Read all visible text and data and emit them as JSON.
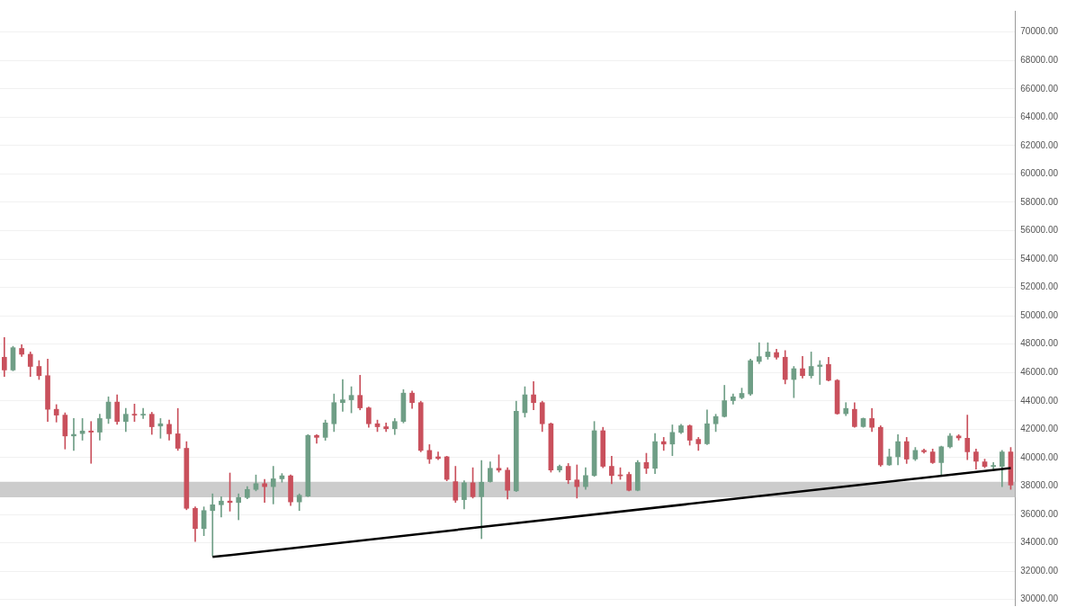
{
  "chart_data": {
    "type": "candlestick",
    "categories": [
      null,
      null,
      null,
      null,
      null,
      null,
      null,
      null,
      null,
      null,
      null,
      null,
      null,
      null,
      null,
      null,
      null,
      null,
      null,
      null,
      null,
      null,
      null,
      null,
      null,
      null,
      null,
      null,
      null,
      null,
      null,
      null,
      null,
      null,
      null,
      null,
      null,
      null,
      null,
      null,
      null,
      null,
      null,
      null,
      null,
      null,
      null,
      null,
      null,
      null,
      null,
      null,
      null,
      null,
      null,
      null,
      null,
      null,
      null,
      null,
      null,
      null,
      null,
      null,
      null,
      null,
      null,
      null,
      null,
      null,
      null,
      null,
      null,
      null,
      null,
      null,
      null,
      null,
      null,
      null,
      null,
      null,
      null,
      null,
      null,
      null,
      null,
      null,
      null,
      null,
      null,
      null,
      null,
      null,
      null,
      null,
      null,
      null,
      null,
      null,
      null,
      null,
      null,
      null,
      null,
      null,
      null,
      null,
      null,
      null,
      null,
      null,
      null,
      null,
      null,
      null,
      null
    ],
    "ohlc": [
      [
        47080,
        48470,
        45720,
        46180
      ],
      [
        46180,
        47850,
        46120,
        47750
      ],
      [
        47700,
        47960,
        47140,
        47290
      ],
      [
        47290,
        47450,
        45720,
        46430
      ],
      [
        46430,
        46840,
        45510,
        45780
      ],
      [
        45780,
        46940,
        42550,
        43410
      ],
      [
        43410,
        43740,
        42510,
        43000
      ],
      [
        43000,
        43160,
        40610,
        41530
      ],
      [
        41530,
        42760,
        40510,
        41640
      ],
      [
        41700,
        42760,
        41230,
        41880
      ],
      [
        41880,
        42550,
        39600,
        41800
      ],
      [
        41800,
        43060,
        41230,
        42760
      ],
      [
        42760,
        44290,
        42410,
        43920
      ],
      [
        43920,
        44430,
        42350,
        42550
      ],
      [
        42550,
        43470,
        41840,
        43060
      ],
      [
        43060,
        43780,
        42550,
        43000
      ],
      [
        43000,
        43470,
        42760,
        43030
      ],
      [
        43060,
        43200,
        41640,
        42180
      ],
      [
        42230,
        42760,
        41370,
        42390
      ],
      [
        42350,
        42660,
        41230,
        41680
      ],
      [
        41680,
        43470,
        40510,
        40660
      ],
      [
        40660,
        41130,
        36330,
        36430
      ],
      [
        36430,
        36530,
        34090,
        35000
      ],
      [
        35000,
        36530,
        34500,
        36270
      ],
      [
        36270,
        37450,
        33070,
        36680
      ],
      [
        36680,
        37250,
        35820,
        36940
      ],
      [
        36940,
        38920,
        36230,
        36840
      ],
      [
        36840,
        37450,
        35620,
        37190
      ],
      [
        37190,
        37960,
        37100,
        37760
      ],
      [
        37760,
        38780,
        37660,
        38170
      ],
      [
        38170,
        38470,
        36840,
        37960
      ],
      [
        37960,
        39390,
        36740,
        38510
      ],
      [
        38510,
        38880,
        38270,
        38720
      ],
      [
        38720,
        38780,
        36630,
        36880
      ],
      [
        36880,
        37450,
        36270,
        37350
      ],
      [
        37290,
        41630,
        37250,
        41570
      ],
      [
        41570,
        41630,
        41020,
        41430
      ],
      [
        41430,
        42650,
        41220,
        42450
      ],
      [
        42390,
        44490,
        41840,
        43880
      ],
      [
        43880,
        45510,
        43270,
        44080
      ],
      [
        44080,
        45000,
        43160,
        44390
      ],
      [
        44390,
        45810,
        43370,
        43510
      ],
      [
        43510,
        43570,
        42140,
        42390
      ],
      [
        42390,
        42650,
        41840,
        42180
      ],
      [
        42180,
        42450,
        41840,
        42040
      ],
      [
        42040,
        42760,
        41630,
        42550
      ],
      [
        42550,
        44800,
        42450,
        44550
      ],
      [
        44550,
        44690,
        43470,
        43880
      ],
      [
        43880,
        43980,
        40410,
        40510
      ],
      [
        40510,
        40920,
        39590,
        39900
      ],
      [
        40060,
        40410,
        39860,
        39940
      ],
      [
        40060,
        40100,
        38370,
        38470
      ],
      [
        38310,
        39390,
        36840,
        37000
      ],
      [
        37040,
        38370,
        36390,
        38230
      ],
      [
        38230,
        39290,
        37150,
        37250
      ],
      [
        37250,
        39800,
        34290,
        38270
      ],
      [
        38310,
        39700,
        38270,
        39250
      ],
      [
        39250,
        40200,
        38980,
        39120
      ],
      [
        39120,
        39290,
        37080,
        37700
      ],
      [
        37660,
        43980,
        37610,
        43270
      ],
      [
        43170,
        45000,
        42860,
        44430
      ],
      [
        44430,
        45370,
        43370,
        43880
      ],
      [
        43880,
        43980,
        41840,
        42390
      ],
      [
        42390,
        42450,
        38980,
        39130
      ],
      [
        39130,
        39490,
        38980,
        39390
      ],
      [
        39390,
        39590,
        38170,
        38430
      ],
      [
        38430,
        39490,
        37150,
        37960
      ],
      [
        37960,
        39290,
        37760,
        38740
      ],
      [
        38740,
        42550,
        38680,
        41900
      ],
      [
        41900,
        42140,
        39290,
        39390
      ],
      [
        39390,
        40100,
        38170,
        38740
      ],
      [
        38780,
        39290,
        38470,
        38720
      ],
      [
        38820,
        38980,
        37660,
        37700
      ],
      [
        37700,
        39800,
        37660,
        39660
      ],
      [
        39660,
        40310,
        38880,
        39250
      ],
      [
        39250,
        41700,
        38880,
        41130
      ],
      [
        41130,
        41430,
        40510,
        40960
      ],
      [
        40960,
        42310,
        40140,
        41780
      ],
      [
        41780,
        42350,
        41700,
        42250
      ],
      [
        42250,
        42310,
        40880,
        41230
      ],
      [
        41290,
        41430,
        40510,
        40980
      ],
      [
        40980,
        43370,
        40920,
        42390
      ],
      [
        42390,
        43060,
        41840,
        42900
      ],
      [
        42900,
        45100,
        42860,
        44020
      ],
      [
        44020,
        44490,
        43780,
        44290
      ],
      [
        44230,
        44900,
        44140,
        44530
      ],
      [
        44490,
        46940,
        44390,
        46840
      ],
      [
        46780,
        48100,
        46630,
        47120
      ],
      [
        47120,
        48100,
        46940,
        47450
      ],
      [
        47410,
        47650,
        46940,
        47080
      ],
      [
        47080,
        47550,
        45200,
        45510
      ],
      [
        45510,
        46430,
        44230,
        46270
      ],
      [
        46270,
        47140,
        45610,
        45780
      ],
      [
        45780,
        47450,
        45610,
        46430
      ],
      [
        46430,
        46840,
        45160,
        46530
      ],
      [
        46570,
        47080,
        45410,
        45450
      ],
      [
        45450,
        45510,
        43060,
        43100
      ],
      [
        43100,
        43880,
        42960,
        43470
      ],
      [
        43410,
        43880,
        42140,
        42190
      ],
      [
        42190,
        42800,
        42140,
        42760
      ],
      [
        42760,
        43470,
        41840,
        42140
      ],
      [
        42140,
        42250,
        39390,
        39490
      ],
      [
        39490,
        40610,
        39450,
        40060
      ],
      [
        40060,
        41630,
        39490,
        41130
      ],
      [
        41130,
        41430,
        39590,
        39900
      ],
      [
        39900,
        40720,
        39800,
        40510
      ],
      [
        40510,
        40610,
        40310,
        40410
      ],
      [
        40410,
        40610,
        39590,
        39660
      ],
      [
        39660,
        40820,
        38780,
        40760
      ],
      [
        40760,
        41700,
        40680,
        41530
      ],
      [
        41530,
        41630,
        41230,
        41390
      ],
      [
        41370,
        43000,
        39860,
        40410
      ],
      [
        40410,
        40610,
        39190,
        39740
      ],
      [
        39700,
        39900,
        39290,
        39390
      ],
      [
        39390,
        39660,
        39190,
        39450
      ],
      [
        39390,
        40510,
        37960,
        40410
      ],
      [
        40410,
        40720,
        37760,
        38070
      ]
    ],
    "colors": [
      "#c9505c",
      "#6f9e86",
      "#c9505c",
      "#c9505c",
      "#c9505c",
      "#c9505c",
      "#c9505c",
      "#c9505c",
      "#6f9e86",
      "#6f9e86",
      "#c9505c",
      "#6f9e86",
      "#6f9e86",
      "#c9505c",
      "#6f9e86",
      "#c9505c",
      "#6f9e86",
      "#c9505c",
      "#6f9e86",
      "#c9505c",
      "#c9505c",
      "#c9505c",
      "#c9505c",
      "#6f9e86",
      "#6f9e86",
      "#6f9e86",
      "#c9505c",
      "#6f9e86",
      "#6f9e86",
      "#6f9e86",
      "#c9505c",
      "#6f9e86",
      "#6f9e86",
      "#c9505c",
      "#6f9e86",
      "#6f9e86",
      "#c9505c",
      "#6f9e86",
      "#6f9e86",
      "#6f9e86",
      "#6f9e86",
      "#c9505c",
      "#c9505c",
      "#c9505c",
      "#c9505c",
      "#6f9e86",
      "#6f9e86",
      "#c9505c",
      "#c9505c",
      "#c9505c",
      "#c9505c",
      "#c9505c",
      "#c9505c",
      "#6f9e86",
      "#c9505c",
      "#6f9e86",
      "#6f9e86",
      "#c9505c",
      "#c9505c",
      "#6f9e86",
      "#6f9e86",
      "#c9505c",
      "#c9505c",
      "#c9505c",
      "#6f9e86",
      "#c9505c",
      "#c9505c",
      "#6f9e86",
      "#6f9e86",
      "#c9505c",
      "#c9505c",
      "#c9505c",
      "#c9505c",
      "#6f9e86",
      "#c9505c",
      "#6f9e86",
      "#c9505c",
      "#6f9e86",
      "#6f9e86",
      "#c9505c",
      "#c9505c",
      "#6f9e86",
      "#6f9e86",
      "#6f9e86",
      "#6f9e86",
      "#6f9e86",
      "#6f9e86",
      "#6f9e86",
      "#6f9e86",
      "#c9505c",
      "#c9505c",
      "#6f9e86",
      "#c9505c",
      "#6f9e86",
      "#6f9e86",
      "#c9505c",
      "#c9505c",
      "#6f9e86",
      "#c9505c",
      "#6f9e86",
      "#c9505c",
      "#c9505c",
      "#6f9e86",
      "#6f9e86",
      "#c9505c",
      "#6f9e86",
      "#c9505c",
      "#c9505c",
      "#6f9e86",
      "#6f9e86",
      "#c9505c",
      "#c9505c",
      "#c9505c",
      "#c9505c",
      "#6f9e86",
      "#6f9e86",
      "#c9505c"
    ],
    "series": [
      {
        "type": "line",
        "color": "#000000",
        "values": [
          null,
          null,
          null,
          null,
          null,
          null,
          null,
          null,
          null,
          null,
          null,
          null,
          null,
          null,
          null,
          null,
          null,
          null,
          null,
          null,
          null,
          null,
          null,
          null,
          33000,
          null,
          null,
          null,
          null,
          null,
          null,
          null,
          null,
          null,
          null,
          null,
          null,
          null,
          null,
          null,
          null,
          null,
          null,
          null,
          null,
          null,
          null,
          null,
          null,
          null,
          null,
          null,
          null,
          null,
          null,
          null,
          null,
          null,
          null,
          null,
          null,
          null,
          null,
          null,
          null,
          null,
          null,
          null,
          null,
          null,
          null,
          null,
          null,
          null,
          null,
          null,
          null,
          null,
          null,
          null,
          null,
          null,
          null,
          null,
          null,
          null,
          null,
          null,
          null,
          null,
          null,
          null,
          null,
          null,
          null,
          null,
          null,
          null,
          null,
          null,
          null,
          null,
          null,
          null,
          null,
          null,
          null,
          null,
          null,
          null,
          null,
          null,
          null,
          null,
          null,
          null,
          39260
        ]
      }
    ],
    "bands": [
      {
        "axis": "y",
        "from": 37200,
        "to": 38300,
        "color": "#cccccc"
      }
    ],
    "ylim": [
      29600,
      71500
    ],
    "yticks": [
      {
        "value": 30000,
        "label": "30000.00"
      },
      {
        "value": 32000,
        "label": "32000.00"
      },
      {
        "value": 34000,
        "label": "34000.00"
      },
      {
        "value": 36000,
        "label": "36000.00"
      },
      {
        "value": 38000,
        "label": "38000.00"
      },
      {
        "value": 40000,
        "label": "40000.00"
      },
      {
        "value": 42000,
        "label": "42000.00"
      },
      {
        "value": 44000,
        "label": "44000.00"
      },
      {
        "value": 46000,
        "label": "46000.00"
      },
      {
        "value": 48000,
        "label": "48000.00"
      },
      {
        "value": 50000,
        "label": "50000.00"
      },
      {
        "value": 52000,
        "label": "52000.00"
      },
      {
        "value": 54000,
        "label": "54000.00"
      },
      {
        "value": 56000,
        "label": "56000.00"
      },
      {
        "value": 58000,
        "label": "58000.00"
      },
      {
        "value": 60000,
        "label": "60000.00"
      },
      {
        "value": 62000,
        "label": "62000.00"
      },
      {
        "value": 64000,
        "label": "64000.00"
      },
      {
        "value": 66000,
        "label": "66000.00"
      },
      {
        "value": 68000,
        "label": "68000.00"
      },
      {
        "value": 70000,
        "label": "70000.00"
      }
    ],
    "grid": "y"
  }
}
